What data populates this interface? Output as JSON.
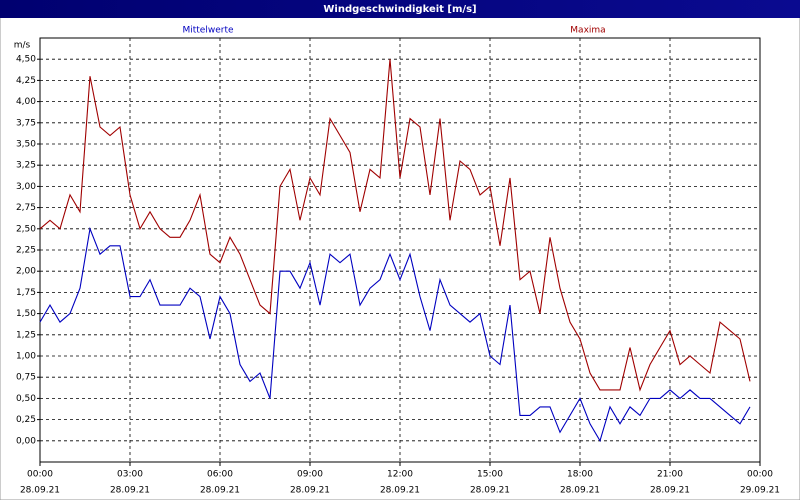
{
  "chart_data": {
    "type": "line",
    "title": "Windgeschwindigkeit [m/s]",
    "y_label": "m/s",
    "x": [
      0,
      20,
      40,
      60,
      80,
      100,
      120,
      140,
      160,
      180,
      200,
      220,
      240,
      260,
      280,
      300,
      320,
      340,
      360,
      380,
      400,
      420,
      440,
      460,
      480,
      500,
      520,
      540,
      560,
      580,
      600,
      620,
      640,
      660,
      680,
      700,
      720,
      740,
      760,
      780,
      800,
      820,
      840,
      860,
      880,
      900,
      920,
      940,
      960,
      980,
      1000,
      1020,
      1040,
      1060,
      1080,
      1100,
      1120,
      1140,
      1160,
      1180,
      1200,
      1220,
      1240,
      1260,
      1280,
      1300,
      1320,
      1340,
      1360,
      1380,
      1400,
      1420
    ],
    "series": [
      {
        "name": "Mittelwerte",
        "color": "#0000c0",
        "values": [
          1.4,
          1.6,
          1.4,
          1.5,
          1.8,
          2.5,
          2.2,
          2.3,
          2.3,
          1.7,
          1.7,
          1.9,
          1.6,
          1.6,
          1.6,
          1.8,
          1.7,
          1.2,
          1.7,
          1.5,
          0.9,
          0.7,
          0.8,
          0.5,
          2.0,
          2.0,
          1.8,
          2.1,
          1.6,
          2.2,
          2.1,
          2.2,
          1.6,
          1.8,
          1.9,
          2.2,
          1.9,
          2.2,
          1.7,
          1.3,
          1.9,
          1.6,
          1.5,
          1.4,
          1.5,
          1.0,
          0.9,
          1.6,
          0.3,
          0.3,
          0.4,
          0.4,
          0.1,
          0.3,
          0.5,
          0.2,
          0.0,
          0.4,
          0.2,
          0.4,
          0.3,
          0.5,
          0.5,
          0.6,
          0.5,
          0.6,
          0.5,
          0.5,
          0.4,
          0.3,
          0.2,
          0.4
        ]
      },
      {
        "name": "Maxima",
        "color": "#a00000",
        "values": [
          2.5,
          2.6,
          2.5,
          2.9,
          2.7,
          4.3,
          3.7,
          3.6,
          3.7,
          2.9,
          2.5,
          2.7,
          2.5,
          2.4,
          2.4,
          2.6,
          2.9,
          2.2,
          2.1,
          2.4,
          2.2,
          1.9,
          1.6,
          1.5,
          3.0,
          3.2,
          2.6,
          3.1,
          2.9,
          3.8,
          3.6,
          3.4,
          2.7,
          3.2,
          3.1,
          4.5,
          3.1,
          3.8,
          3.7,
          2.9,
          3.8,
          2.6,
          3.3,
          3.2,
          2.9,
          3.0,
          2.3,
          3.1,
          1.9,
          2.0,
          1.5,
          2.4,
          1.8,
          1.4,
          1.2,
          0.8,
          0.6,
          0.6,
          0.6,
          1.1,
          0.6,
          0.9,
          1.1,
          1.3,
          0.9,
          1.0,
          0.9,
          0.8,
          1.4,
          1.3,
          1.2,
          0.7
        ]
      }
    ],
    "xlim": [
      0,
      1440
    ],
    "xticks": [
      {
        "value": 0,
        "label": "00:00",
        "date": "28.09.21"
      },
      {
        "value": 180,
        "label": "03:00",
        "date": "28.09.21"
      },
      {
        "value": 360,
        "label": "06:00",
        "date": "28.09.21"
      },
      {
        "value": 540,
        "label": "09:00",
        "date": "28.09.21"
      },
      {
        "value": 720,
        "label": "12:00",
        "date": "28.09.21"
      },
      {
        "value": 900,
        "label": "15:00",
        "date": "28.09.21"
      },
      {
        "value": 1080,
        "label": "18:00",
        "date": "28.09.21"
      },
      {
        "value": 1260,
        "label": "21:00",
        "date": "28.09.21"
      },
      {
        "value": 1440,
        "label": "00:00",
        "date": "29.09.21"
      }
    ],
    "ylim": [
      -0.25,
      4.75
    ],
    "yticks": [
      {
        "value": 0,
        "label": "0,00"
      },
      {
        "value": 0.25,
        "label": "0,25"
      },
      {
        "value": 0.5,
        "label": "0,50"
      },
      {
        "value": 0.75,
        "label": "0,75"
      },
      {
        "value": 1,
        "label": "1,00"
      },
      {
        "value": 1.25,
        "label": "1,25"
      },
      {
        "value": 1.5,
        "label": "1,50"
      },
      {
        "value": 1.75,
        "label": "1,75"
      },
      {
        "value": 2,
        "label": "2,00"
      },
      {
        "value": 2.25,
        "label": "2,25"
      },
      {
        "value": 2.5,
        "label": "2,50"
      },
      {
        "value": 2.75,
        "label": "2,75"
      },
      {
        "value": 3,
        "label": "3,00"
      },
      {
        "value": 3.25,
        "label": "3,25"
      },
      {
        "value": 3.5,
        "label": "3,50"
      },
      {
        "value": 3.75,
        "label": "3,75"
      },
      {
        "value": 4,
        "label": "4,00"
      },
      {
        "value": 4.25,
        "label": "4,25"
      },
      {
        "value": 4.5,
        "label": "4,50"
      }
    ],
    "grid": true
  }
}
